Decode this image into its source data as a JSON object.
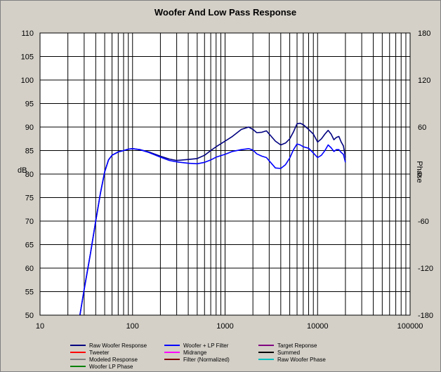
{
  "chart_data": {
    "type": "line",
    "title": "Woofer  And Low Pass Response",
    "xlabel": "",
    "ylabel": "dB",
    "y2label": "Phase",
    "x_scale": "log",
    "xlim": [
      10,
      100000
    ],
    "ylim": [
      50,
      110
    ],
    "y2lim": [
      -180,
      180
    ],
    "x_ticks": [
      "10",
      "100",
      "1000",
      "10000",
      "100000"
    ],
    "y_ticks": [
      "50",
      "55",
      "60",
      "65",
      "70",
      "75",
      "80",
      "85",
      "90",
      "95",
      "100",
      "105",
      "110"
    ],
    "y2_ticks": [
      "-180",
      "-120",
      "-60",
      "0",
      "60",
      "120",
      "180"
    ],
    "grid": true,
    "legend_position": "bottom",
    "legend": [
      {
        "label": "Raw Woofer Response",
        "color": "#000080"
      },
      {
        "label": "Woofer + LP Filter",
        "color": "#0000ff"
      },
      {
        "label": "Target Reponse",
        "color": "#800080"
      },
      {
        "label": "Tweeter",
        "color": "#ff0000"
      },
      {
        "label": "Midrange",
        "color": "#ff00ff"
      },
      {
        "label": "Summed",
        "color": "#000000"
      },
      {
        "label": "Modeled Response",
        "color": "#808080"
      },
      {
        "label": "Filter (Normalized)",
        "color": "#800000"
      },
      {
        "label": "Raw Woofer Phase",
        "color": "#00c0c0"
      },
      {
        "label": "Woofer LP Phase",
        "color": "#008000"
      }
    ],
    "series": [
      {
        "name": "Raw Woofer Response",
        "color": "#000080",
        "x": [
          27,
          30,
          35,
          40,
          45,
          50,
          55,
          60,
          70,
          80,
          90,
          100,
          120,
          150,
          200,
          250,
          300,
          400,
          500,
          600,
          700,
          800,
          1000,
          1200,
          1500,
          1800,
          2000,
          2200,
          2500,
          2800,
          3000,
          3500,
          4000,
          4500,
          5000,
          5500,
          6000,
          6500,
          7000,
          8000,
          9000,
          10000,
          11000,
          12000,
          13000,
          14000,
          15000,
          16000,
          17000,
          18000,
          19000,
          20000
        ],
        "y": [
          50,
          55.5,
          63,
          70,
          76,
          80.5,
          83,
          84,
          84.7,
          85,
          85.3,
          85.4,
          85.2,
          84.7,
          83.8,
          83.2,
          82.9,
          83.1,
          83.3,
          84,
          85,
          85.8,
          87,
          88,
          89.5,
          90,
          89.5,
          88.8,
          88.9,
          89.2,
          88.5,
          87,
          86.2,
          86.6,
          87.5,
          89,
          90.7,
          90.8,
          90.5,
          89.5,
          88.5,
          86.8,
          87.5,
          88.5,
          89.3,
          88.5,
          87.3,
          87.8,
          88,
          86.8,
          86,
          83.5
        ]
      },
      {
        "name": "Woofer + LP Filter",
        "color": "#0000ff",
        "x": [
          27,
          30,
          35,
          40,
          45,
          50,
          55,
          60,
          70,
          80,
          90,
          100,
          120,
          150,
          200,
          250,
          300,
          400,
          500,
          600,
          700,
          800,
          1000,
          1200,
          1500,
          1800,
          2000,
          2200,
          2500,
          2800,
          3000,
          3500,
          4000,
          4500,
          5000,
          5500,
          6000,
          6500,
          7000,
          8000,
          9000,
          10000,
          11000,
          12000,
          13000,
          14000,
          15000,
          16000,
          17000,
          18000,
          19000,
          20000
        ],
        "y": [
          50,
          55.5,
          63,
          70,
          76,
          80.5,
          83,
          84,
          84.7,
          85,
          85.3,
          85.4,
          85.2,
          84.6,
          83.6,
          82.9,
          82.6,
          82.3,
          82.2,
          82.5,
          83,
          83.6,
          84.2,
          84.8,
          85.2,
          85.4,
          85.1,
          84.3,
          83.8,
          83.5,
          82.8,
          81.3,
          81.2,
          82,
          83.4,
          85.2,
          86.4,
          86.2,
          85.8,
          85.5,
          84.5,
          83.5,
          84,
          85,
          86.2,
          85.6,
          84.8,
          85.2,
          85.2,
          84.6,
          84.2,
          82.5
        ]
      }
    ]
  }
}
